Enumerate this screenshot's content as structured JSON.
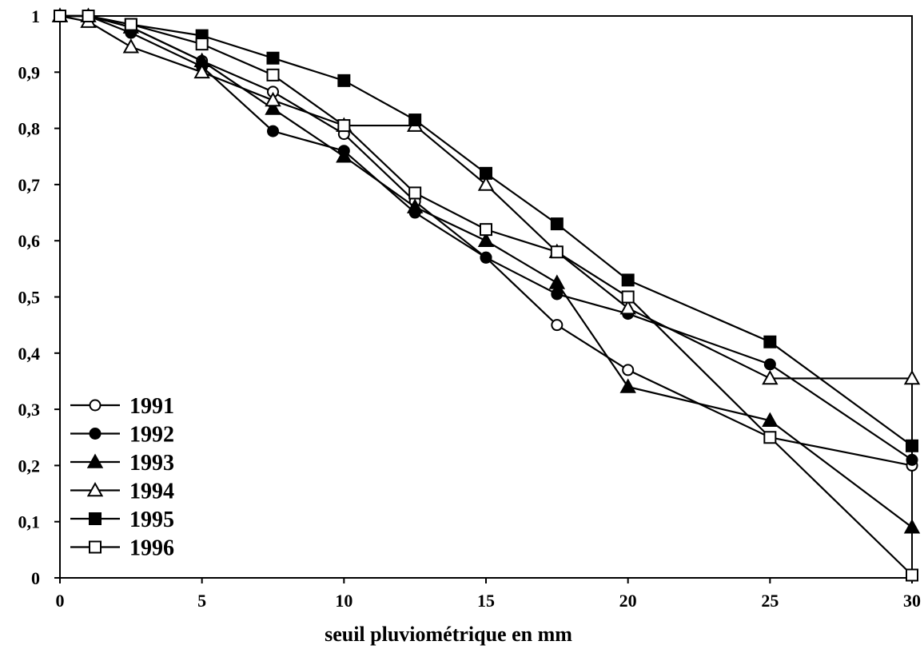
{
  "chart_data": {
    "type": "line",
    "title": "",
    "xlabel": "seuil pluviométrique en mm",
    "ylabel": "",
    "xlim": [
      0,
      30
    ],
    "ylim": [
      0,
      1
    ],
    "x_ticks": [
      0,
      5,
      10,
      15,
      20,
      25,
      30
    ],
    "y_ticks": [
      0,
      0.1,
      0.2,
      0.3,
      0.4,
      0.5,
      0.6,
      0.7,
      0.8,
      0.9,
      1
    ],
    "x_tick_labels": [
      "0",
      "5",
      "10",
      "15",
      "20",
      "25",
      "30"
    ],
    "y_tick_labels": [
      "0",
      "0,1",
      "0,2",
      "0,3",
      "0,4",
      "0,5",
      "0,6",
      "0,7",
      "0,8",
      "0,9",
      "1"
    ],
    "grid": false,
    "legend_position": "bottom-left",
    "x": [
      0,
      1,
      2.5,
      5,
      7.5,
      10,
      12.5,
      15,
      17.5,
      20,
      25,
      30
    ],
    "series": [
      {
        "name": "1991",
        "marker": "circle-open",
        "values": [
          1,
          1,
          0.98,
          0.92,
          0.865,
          0.79,
          0.67,
          0.57,
          0.45,
          0.37,
          0.25,
          0.2
        ]
      },
      {
        "name": "1992",
        "marker": "circle-filled",
        "values": [
          1,
          1,
          0.97,
          0.91,
          0.795,
          0.76,
          0.65,
          0.57,
          0.505,
          0.47,
          0.38,
          0.21
        ]
      },
      {
        "name": "1993",
        "marker": "triangle-filled",
        "values": [
          1,
          1,
          0.98,
          0.92,
          0.835,
          0.75,
          0.66,
          0.6,
          0.525,
          0.34,
          0.28,
          0.09
        ]
      },
      {
        "name": "1994",
        "marker": "triangle-open",
        "values": [
          1,
          0.99,
          0.945,
          0.9,
          0.85,
          0.805,
          0.805,
          0.7,
          0.58,
          0.48,
          0.355,
          0.355
        ]
      },
      {
        "name": "1995",
        "marker": "square-filled",
        "values": [
          1,
          1,
          0.985,
          0.965,
          0.925,
          0.885,
          0.815,
          0.72,
          0.63,
          0.53,
          0.42,
          0.235
        ]
      },
      {
        "name": "1996",
        "marker": "square-open",
        "values": [
          1,
          1,
          0.985,
          0.95,
          0.895,
          0.805,
          0.685,
          0.62,
          0.58,
          0.5,
          0.25,
          0.005
        ]
      }
    ]
  }
}
